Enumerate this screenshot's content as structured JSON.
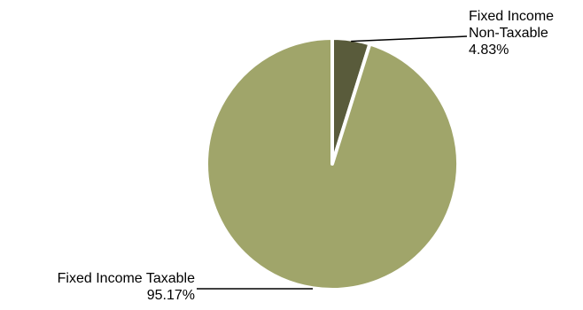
{
  "chart_data": {
    "type": "pie",
    "slices": [
      {
        "name": "Fixed Income Non-Taxable",
        "value": 4.83,
        "label_line1": "Fixed Income",
        "label_line2": "Non-Taxable",
        "percent_label": "4.83%",
        "color": "#595b3b"
      },
      {
        "name": "Fixed Income Taxable",
        "value": 95.17,
        "label_line1": "Fixed Income Taxable",
        "percent_label": "95.17%",
        "color": "#a0a56a"
      }
    ],
    "title": "",
    "legend": "none",
    "start_angle_deg": 0,
    "direction": "clockwise"
  },
  "colors": {
    "background": "#ffffff",
    "separator": "#ffffff",
    "leader_line": "#000000"
  }
}
